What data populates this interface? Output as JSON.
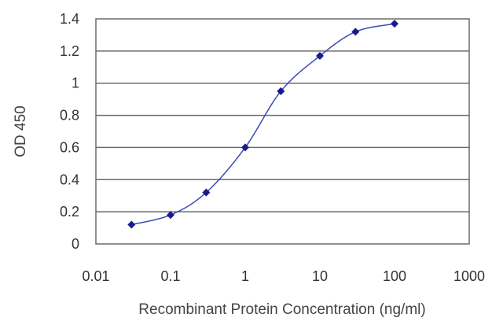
{
  "chart_data": {
    "type": "scatter",
    "title": "",
    "xlabel": "Recombinant Protein Concentration (ng/ml)",
    "ylabel": "OD 450",
    "xscale": "log",
    "xlim": [
      0.01,
      1000
    ],
    "ylim": [
      0,
      1.4
    ],
    "x_ticks": [
      "0.01",
      "0.1",
      "1",
      "10",
      "100",
      "1000"
    ],
    "y_ticks": [
      "0",
      "0.2",
      "0.4",
      "0.6",
      "0.8",
      "1",
      "1.2",
      "1.4"
    ],
    "grid": "horizontal",
    "series": [
      {
        "x": [
          0.03,
          0.1,
          0.3,
          1,
          3,
          10,
          30,
          100
        ],
        "y": [
          0.12,
          0.18,
          0.32,
          0.6,
          0.95,
          1.17,
          1.32,
          1.37
        ],
        "marker": "diamond",
        "connected": "smooth"
      }
    ],
    "colors": {
      "line": "#3a4ab8",
      "marker": "#1a1a8c",
      "grid": "#6b6b6b",
      "frame": "#6b6b6b"
    }
  }
}
